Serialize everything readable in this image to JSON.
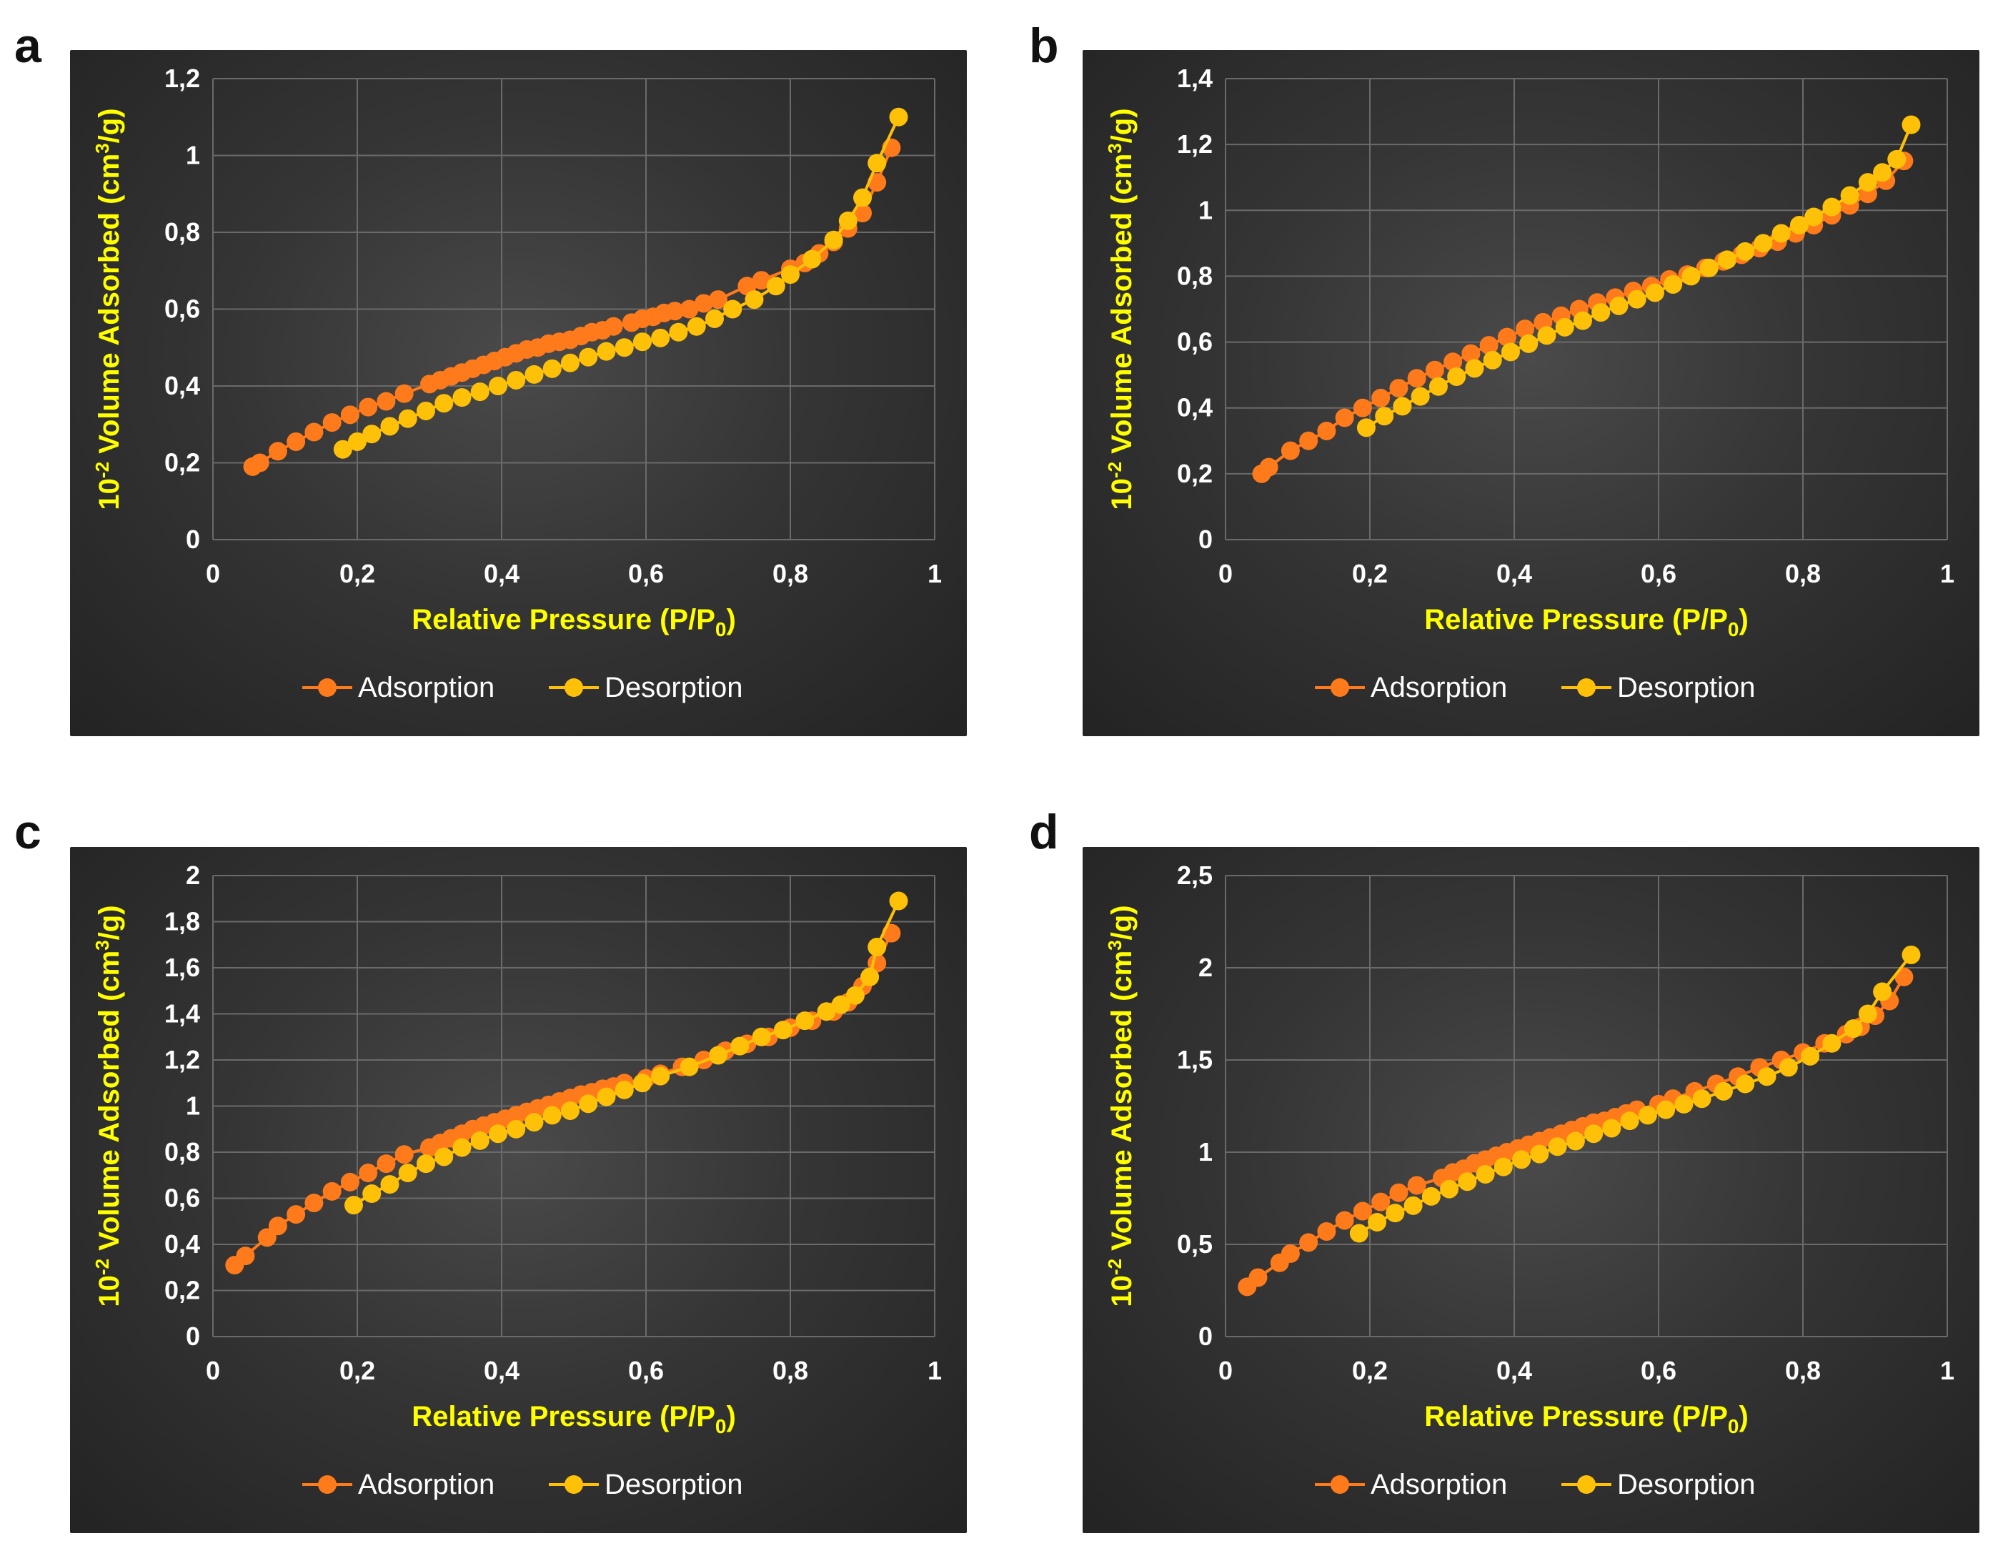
{
  "series_colors": {
    "adsorption": "#ff7a1a",
    "desorption": "#ffc107"
  },
  "label_color": "#ffff00",
  "chart_data": [
    {
      "panel": "a",
      "type": "scatter",
      "xlabel_main": "Relative Pressure (P/P",
      "xlabel_sub": "0",
      "xlabel_end": ")",
      "ylabel_base": "10",
      "ylabel_exp": "-2",
      "ylabel_mid": " Volume Adsorbed (cm",
      "ylabel_sup": "3",
      "ylabel_end": "/g)",
      "xlim": [
        0,
        1
      ],
      "ylim": [
        0,
        1.2
      ],
      "xticks": [
        0,
        0.2,
        0.4,
        0.6,
        0.8,
        1
      ],
      "xtick_labels": [
        "0",
        "0,2",
        "0,4",
        "0,6",
        "0,8",
        "1"
      ],
      "yticks": [
        0,
        0.2,
        0.4,
        0.6,
        0.8,
        1,
        1.2
      ],
      "ytick_labels": [
        "0",
        "0,2",
        "0,4",
        "0,6",
        "0,8",
        "1",
        "1,2"
      ],
      "legend": [
        "Adsorption",
        "Desorption"
      ],
      "series": [
        {
          "name": "Adsorption",
          "x": [
            0.055,
            0.065,
            0.09,
            0.115,
            0.14,
            0.165,
            0.19,
            0.215,
            0.24,
            0.265,
            0.3,
            0.315,
            0.33,
            0.345,
            0.36,
            0.375,
            0.39,
            0.405,
            0.42,
            0.435,
            0.45,
            0.465,
            0.48,
            0.495,
            0.51,
            0.525,
            0.54,
            0.555,
            0.58,
            0.595,
            0.61,
            0.625,
            0.64,
            0.66,
            0.68,
            0.7,
            0.74,
            0.76,
            0.8,
            0.82,
            0.84,
            0.86,
            0.88,
            0.9,
            0.92,
            0.94
          ],
          "y": [
            0.19,
            0.2,
            0.23,
            0.255,
            0.28,
            0.305,
            0.325,
            0.345,
            0.36,
            0.38,
            0.405,
            0.415,
            0.425,
            0.435,
            0.445,
            0.455,
            0.465,
            0.475,
            0.485,
            0.495,
            0.5,
            0.51,
            0.515,
            0.52,
            0.53,
            0.54,
            0.545,
            0.555,
            0.565,
            0.575,
            0.58,
            0.59,
            0.595,
            0.6,
            0.615,
            0.625,
            0.66,
            0.675,
            0.705,
            0.72,
            0.745,
            0.775,
            0.81,
            0.85,
            0.93,
            1.02
          ]
        },
        {
          "name": "Desorption",
          "x": [
            0.18,
            0.2,
            0.22,
            0.245,
            0.27,
            0.295,
            0.32,
            0.345,
            0.37,
            0.395,
            0.42,
            0.445,
            0.47,
            0.495,
            0.52,
            0.545,
            0.57,
            0.595,
            0.62,
            0.645,
            0.67,
            0.695,
            0.72,
            0.75,
            0.78,
            0.8,
            0.83,
            0.86,
            0.88,
            0.9,
            0.92,
            0.95
          ],
          "y": [
            0.235,
            0.255,
            0.275,
            0.295,
            0.315,
            0.335,
            0.355,
            0.37,
            0.385,
            0.4,
            0.415,
            0.43,
            0.445,
            0.46,
            0.475,
            0.49,
            0.5,
            0.515,
            0.525,
            0.54,
            0.555,
            0.575,
            0.6,
            0.625,
            0.66,
            0.69,
            0.73,
            0.78,
            0.83,
            0.89,
            0.98,
            1.1
          ]
        }
      ]
    },
    {
      "panel": "b",
      "type": "scatter",
      "xlabel_main": "Relative Pressure (P/P",
      "xlabel_sub": "0",
      "xlabel_end": ")",
      "ylabel_base": "10",
      "ylabel_exp": "-2",
      "ylabel_mid": " Volume Adsorbed (cm",
      "ylabel_sup": "3",
      "ylabel_end": "/g)",
      "xlim": [
        0,
        1
      ],
      "ylim": [
        0,
        1.4
      ],
      "xticks": [
        0,
        0.2,
        0.4,
        0.6,
        0.8,
        1
      ],
      "xtick_labels": [
        "0",
        "0,2",
        "0,4",
        "0,6",
        "0,8",
        "1"
      ],
      "yticks": [
        0,
        0.2,
        0.4,
        0.6,
        0.8,
        1,
        1.2,
        1.4
      ],
      "ytick_labels": [
        "0",
        "0,2",
        "0,4",
        "0,6",
        "0,8",
        "1",
        "1,2",
        "1,4"
      ],
      "legend": [
        "Adsorption",
        "Desorption"
      ],
      "series": [
        {
          "name": "Adsorption",
          "x": [
            0.05,
            0.06,
            0.09,
            0.115,
            0.14,
            0.165,
            0.19,
            0.215,
            0.24,
            0.265,
            0.29,
            0.315,
            0.34,
            0.365,
            0.39,
            0.415,
            0.44,
            0.465,
            0.49,
            0.515,
            0.54,
            0.565,
            0.59,
            0.615,
            0.64,
            0.665,
            0.69,
            0.715,
            0.74,
            0.765,
            0.79,
            0.815,
            0.84,
            0.865,
            0.89,
            0.915,
            0.94
          ],
          "y": [
            0.2,
            0.22,
            0.27,
            0.3,
            0.33,
            0.37,
            0.4,
            0.43,
            0.46,
            0.49,
            0.515,
            0.54,
            0.565,
            0.59,
            0.615,
            0.64,
            0.66,
            0.68,
            0.7,
            0.72,
            0.735,
            0.755,
            0.77,
            0.79,
            0.805,
            0.825,
            0.845,
            0.865,
            0.885,
            0.905,
            0.93,
            0.955,
            0.985,
            1.015,
            1.05,
            1.09,
            1.15
          ]
        },
        {
          "name": "Desorption",
          "x": [
            0.195,
            0.22,
            0.245,
            0.27,
            0.295,
            0.32,
            0.345,
            0.37,
            0.395,
            0.42,
            0.445,
            0.47,
            0.495,
            0.52,
            0.545,
            0.57,
            0.595,
            0.62,
            0.645,
            0.67,
            0.695,
            0.72,
            0.745,
            0.77,
            0.795,
            0.815,
            0.84,
            0.865,
            0.89,
            0.91,
            0.93,
            0.95
          ],
          "y": [
            0.34,
            0.375,
            0.405,
            0.435,
            0.465,
            0.495,
            0.52,
            0.545,
            0.57,
            0.595,
            0.62,
            0.645,
            0.665,
            0.69,
            0.71,
            0.73,
            0.75,
            0.775,
            0.8,
            0.825,
            0.85,
            0.875,
            0.9,
            0.93,
            0.955,
            0.98,
            1.01,
            1.045,
            1.085,
            1.115,
            1.155,
            1.26
          ]
        }
      ]
    },
    {
      "panel": "c",
      "type": "scatter",
      "xlabel_main": "Relative Pressure (P/P",
      "xlabel_sub": "0",
      "xlabel_end": ")",
      "ylabel_base": "10",
      "ylabel_exp": "-2",
      "ylabel_mid": " Volume Adsorbed (cm",
      "ylabel_sup": "3",
      "ylabel_end": "/g)",
      "xlim": [
        0,
        1
      ],
      "ylim": [
        0,
        2
      ],
      "xticks": [
        0,
        0.2,
        0.4,
        0.6,
        0.8,
        1
      ],
      "xtick_labels": [
        "0",
        "0,2",
        "0,4",
        "0,6",
        "0,8",
        "1"
      ],
      "yticks": [
        0,
        0.2,
        0.4,
        0.6,
        0.8,
        1,
        1.2,
        1.4,
        1.6,
        1.8,
        2
      ],
      "ytick_labels": [
        "0",
        "0,2",
        "0,4",
        "0,6",
        "0,8",
        "1",
        "1,2",
        "1,4",
        "1,6",
        "1,8",
        "2"
      ],
      "legend": [
        "Adsorption",
        "Desorption"
      ],
      "series": [
        {
          "name": "Adsorption",
          "x": [
            0.03,
            0.045,
            0.075,
            0.09,
            0.115,
            0.14,
            0.165,
            0.19,
            0.215,
            0.24,
            0.265,
            0.3,
            0.315,
            0.33,
            0.345,
            0.36,
            0.375,
            0.39,
            0.405,
            0.42,
            0.435,
            0.45,
            0.465,
            0.48,
            0.495,
            0.51,
            0.525,
            0.54,
            0.555,
            0.57,
            0.6,
            0.62,
            0.65,
            0.68,
            0.71,
            0.74,
            0.77,
            0.8,
            0.83,
            0.86,
            0.88,
            0.9,
            0.92,
            0.94
          ],
          "y": [
            0.31,
            0.35,
            0.43,
            0.48,
            0.53,
            0.58,
            0.63,
            0.67,
            0.71,
            0.75,
            0.79,
            0.82,
            0.84,
            0.86,
            0.88,
            0.9,
            0.915,
            0.93,
            0.945,
            0.96,
            0.975,
            0.99,
            1.005,
            1.02,
            1.035,
            1.05,
            1.06,
            1.075,
            1.085,
            1.1,
            1.12,
            1.14,
            1.17,
            1.2,
            1.24,
            1.27,
            1.3,
            1.34,
            1.37,
            1.41,
            1.45,
            1.52,
            1.62,
            1.75
          ]
        },
        {
          "name": "Desorption",
          "x": [
            0.195,
            0.22,
            0.245,
            0.27,
            0.295,
            0.32,
            0.345,
            0.37,
            0.395,
            0.42,
            0.445,
            0.47,
            0.495,
            0.52,
            0.545,
            0.57,
            0.595,
            0.62,
            0.66,
            0.7,
            0.73,
            0.76,
            0.79,
            0.82,
            0.85,
            0.87,
            0.89,
            0.91,
            0.92,
            0.95
          ],
          "y": [
            0.57,
            0.62,
            0.66,
            0.71,
            0.75,
            0.78,
            0.82,
            0.85,
            0.88,
            0.9,
            0.93,
            0.96,
            0.98,
            1.01,
            1.04,
            1.07,
            1.1,
            1.13,
            1.17,
            1.22,
            1.26,
            1.3,
            1.33,
            1.37,
            1.41,
            1.44,
            1.48,
            1.56,
            1.69,
            1.89
          ]
        }
      ]
    },
    {
      "panel": "d",
      "type": "scatter",
      "xlabel_main": "Relative Pressure (P/P",
      "xlabel_sub": "0",
      "xlabel_end": ")",
      "ylabel_base": "10",
      "ylabel_exp": "-2",
      "ylabel_mid": " Volume Adsorbed (cm",
      "ylabel_sup": "3",
      "ylabel_end": "/g)",
      "xlim": [
        0,
        1
      ],
      "ylim": [
        0,
        2.5
      ],
      "xticks": [
        0,
        0.2,
        0.4,
        0.6,
        0.8,
        1
      ],
      "xtick_labels": [
        "0",
        "0,2",
        "0,4",
        "0,6",
        "0,8",
        "1"
      ],
      "yticks": [
        0,
        0.5,
        1,
        1.5,
        2,
        2.5
      ],
      "ytick_labels": [
        "0",
        "0,5",
        "1",
        "1,5",
        "2",
        "2,5"
      ],
      "legend": [
        "Adsorption",
        "Desorption"
      ],
      "series": [
        {
          "name": "Adsorption",
          "x": [
            0.03,
            0.045,
            0.075,
            0.09,
            0.115,
            0.14,
            0.165,
            0.19,
            0.215,
            0.24,
            0.265,
            0.3,
            0.315,
            0.33,
            0.345,
            0.36,
            0.375,
            0.39,
            0.405,
            0.42,
            0.435,
            0.45,
            0.465,
            0.48,
            0.495,
            0.51,
            0.525,
            0.54,
            0.555,
            0.57,
            0.6,
            0.62,
            0.65,
            0.68,
            0.71,
            0.74,
            0.77,
            0.8,
            0.83,
            0.86,
            0.88,
            0.9,
            0.92,
            0.94
          ],
          "y": [
            0.27,
            0.32,
            0.4,
            0.45,
            0.51,
            0.57,
            0.63,
            0.68,
            0.73,
            0.78,
            0.82,
            0.86,
            0.89,
            0.91,
            0.94,
            0.96,
            0.98,
            1.0,
            1.02,
            1.04,
            1.06,
            1.08,
            1.1,
            1.12,
            1.14,
            1.16,
            1.17,
            1.19,
            1.21,
            1.23,
            1.26,
            1.29,
            1.33,
            1.37,
            1.41,
            1.46,
            1.5,
            1.54,
            1.59,
            1.64,
            1.68,
            1.74,
            1.82,
            1.95
          ]
        },
        {
          "name": "Desorption",
          "x": [
            0.185,
            0.21,
            0.235,
            0.26,
            0.285,
            0.31,
            0.335,
            0.36,
            0.385,
            0.41,
            0.435,
            0.46,
            0.485,
            0.51,
            0.535,
            0.56,
            0.585,
            0.61,
            0.635,
            0.66,
            0.69,
            0.72,
            0.75,
            0.78,
            0.81,
            0.84,
            0.87,
            0.89,
            0.91,
            0.95
          ],
          "y": [
            0.56,
            0.62,
            0.67,
            0.71,
            0.76,
            0.8,
            0.84,
            0.88,
            0.92,
            0.96,
            0.99,
            1.03,
            1.06,
            1.1,
            1.13,
            1.17,
            1.2,
            1.23,
            1.26,
            1.29,
            1.33,
            1.37,
            1.41,
            1.46,
            1.52,
            1.59,
            1.67,
            1.75,
            1.87,
            2.07
          ]
        }
      ]
    }
  ]
}
